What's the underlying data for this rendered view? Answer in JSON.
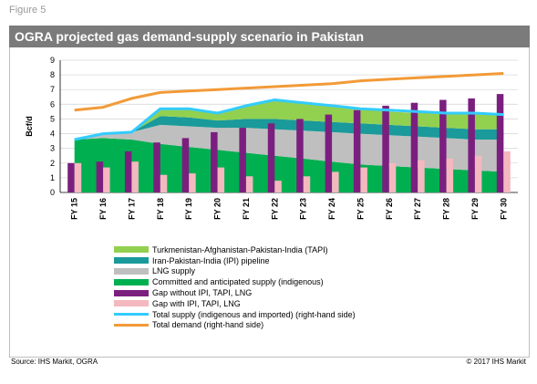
{
  "figure_label": "Figure 5",
  "title": "OGRA projected gas demand-supply scenario in Pakistan",
  "source": "Source: IHS Markit, OGRA",
  "copyright": "© 2017 IHS Markit",
  "colors": {
    "tapi": "#92d050",
    "ipi": "#1a9a9a",
    "lng": "#bfbfbf",
    "indigenous": "#00b050",
    "gap_without": "#7b1f7f",
    "gap_with": "#f4b8bf",
    "total_supply": "#33ccff",
    "total_demand": "#f29a38"
  },
  "chart_data": {
    "type": "area",
    "ylabel": "Bcf/d",
    "ylim": [
      0,
      9
    ],
    "yticks": [
      "0",
      "1",
      "2",
      "3",
      "4",
      "5",
      "6",
      "7",
      "8",
      "9"
    ],
    "categories": [
      "FY 15",
      "FY 16",
      "FY 17",
      "FY 18",
      "FY 19",
      "FY 20",
      "FY 21",
      "FY 22",
      "FY 23",
      "FY 24",
      "FY 25",
      "FY 26",
      "FY 27",
      "FY 28",
      "FY 29",
      "FY 30"
    ],
    "stack_series": [
      {
        "name": "Committed and anticipated supply (indigenous)",
        "type": "area",
        "values": [
          3.6,
          3.7,
          3.6,
          3.3,
          3.1,
          2.9,
          2.7,
          2.5,
          2.3,
          2.1,
          1.9,
          1.8,
          1.7,
          1.6,
          1.5,
          1.4
        ]
      },
      {
        "name": "LNG supply",
        "type": "area",
        "values": [
          0.0,
          0.3,
          0.5,
          1.3,
          1.4,
          1.5,
          1.7,
          1.8,
          1.9,
          2.0,
          2.1,
          2.1,
          2.1,
          2.1,
          2.1,
          2.2
        ]
      },
      {
        "name": "Iran-Pakistan-India (IPI) pipeline",
        "type": "area",
        "values": [
          0.0,
          0.0,
          0.0,
          0.6,
          0.6,
          0.5,
          0.6,
          0.7,
          0.7,
          0.7,
          0.7,
          0.7,
          0.7,
          0.7,
          0.7,
          0.7
        ]
      },
      {
        "name": "Turkmenistan-Afghanistan-Pakistan-India (TAPI)",
        "type": "area",
        "values": [
          0.0,
          0.0,
          0.0,
          0.5,
          0.6,
          0.5,
          0.9,
          1.3,
          1.2,
          1.1,
          1.0,
          0.9,
          0.9,
          1.0,
          1.1,
          1.0
        ]
      }
    ],
    "bar_series": [
      {
        "name": "Gap without IPI, TAPI, LNG",
        "values": [
          2.0,
          2.1,
          2.8,
          3.4,
          3.7,
          4.1,
          4.4,
          4.7,
          5.0,
          5.3,
          5.6,
          5.9,
          6.1,
          6.3,
          6.4,
          6.7
        ]
      },
      {
        "name": "Gap with IPI, TAPI, LNG",
        "values": [
          2.0,
          1.7,
          2.1,
          1.2,
          1.3,
          1.7,
          1.1,
          0.8,
          1.1,
          1.4,
          1.7,
          2.0,
          2.2,
          2.3,
          2.5,
          2.8
        ]
      }
    ],
    "line_series": [
      {
        "name": "Total supply (indigenous and imported) (right-hand side)",
        "values": [
          3.6,
          4.0,
          4.1,
          5.7,
          5.7,
          5.4,
          5.9,
          6.3,
          6.1,
          5.9,
          5.7,
          5.6,
          5.5,
          5.4,
          5.4,
          5.3
        ]
      },
      {
        "name": "Total demand (right-hand side)",
        "values": [
          5.6,
          5.8,
          6.4,
          6.8,
          6.9,
          7.0,
          7.1,
          7.2,
          7.3,
          7.4,
          7.6,
          7.7,
          7.8,
          7.9,
          8.0,
          8.1
        ]
      }
    ],
    "legend": [
      {
        "label": "Turkmenistan-Afghanistan-Pakistan-India (TAPI)",
        "color_key": "tapi",
        "kind": "box"
      },
      {
        "label": "Iran-Pakistan-India (IPI) pipeline",
        "color_key": "ipi",
        "kind": "box"
      },
      {
        "label": "LNG supply",
        "color_key": "lng",
        "kind": "box"
      },
      {
        "label": "Committed and anticipated supply (indigenous)",
        "color_key": "indigenous",
        "kind": "box"
      },
      {
        "label": "Gap without IPI, TAPI, LNG",
        "color_key": "gap_without",
        "kind": "box"
      },
      {
        "label": "Gap with IPI, TAPI, LNG",
        "color_key": "gap_with",
        "kind": "box"
      },
      {
        "label": "Total supply (indigenous and imported) (right-hand side)",
        "color_key": "total_supply",
        "kind": "line"
      },
      {
        "label": "Total demand (right-hand side)",
        "color_key": "total_demand",
        "kind": "line"
      }
    ],
    "legend_position": "bottom",
    "grid": true
  }
}
